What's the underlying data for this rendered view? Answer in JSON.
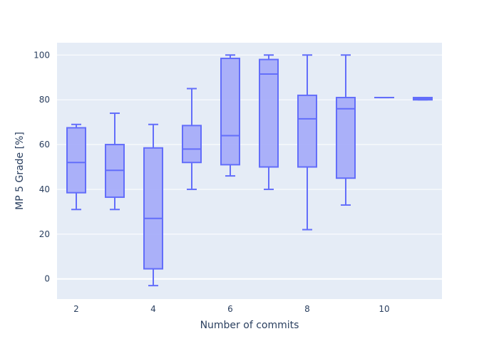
{
  "chart_data": {
    "type": "box",
    "xlabel": "Number of commits",
    "ylabel": "MP 5 Grade [%]",
    "xlim": [
      1.5,
      11.5
    ],
    "ylim": [
      -9,
      105.5
    ],
    "x_ticks": [
      2,
      4,
      6,
      8,
      10
    ],
    "y_ticks": [
      0,
      20,
      40,
      60,
      80,
      100
    ],
    "grid": true,
    "legend": "none",
    "colors": {
      "plot_bg": "#e5ecf6",
      "grid": "#ffffff",
      "box_line": "#636efa",
      "box_fill": "#a3aaf9",
      "text": "#2a3f5f"
    },
    "boxes": [
      {
        "x": 2,
        "min": 31,
        "q1": 38.5,
        "median": 52,
        "q3": 67.5,
        "max": 69
      },
      {
        "x": 3,
        "min": 31,
        "q1": 36.5,
        "median": 48.5,
        "q3": 60,
        "max": 74
      },
      {
        "x": 4,
        "min": -3,
        "q1": 4.5,
        "median": 27,
        "q3": 58.5,
        "max": 69
      },
      {
        "x": 5,
        "min": 40,
        "q1": 52,
        "median": 58,
        "q3": 68.5,
        "max": 85
      },
      {
        "x": 6,
        "min": 46,
        "q1": 51,
        "median": 64,
        "q3": 98.5,
        "max": 100
      },
      {
        "x": 7,
        "min": 40,
        "q1": 50,
        "median": 91.5,
        "q3": 98,
        "max": 100
      },
      {
        "x": 8,
        "min": 22,
        "q1": 50,
        "median": 71.5,
        "q3": 82,
        "max": 100
      },
      {
        "x": 9,
        "min": 33,
        "q1": 45,
        "median": 76,
        "q3": 81,
        "max": 100
      },
      {
        "x": 10,
        "min": 81,
        "q1": 81,
        "median": 81,
        "q3": 81,
        "max": 81
      },
      {
        "x": 11,
        "min": 80,
        "q1": 80,
        "median": 80.5,
        "q3": 81,
        "max": 81
      }
    ]
  }
}
